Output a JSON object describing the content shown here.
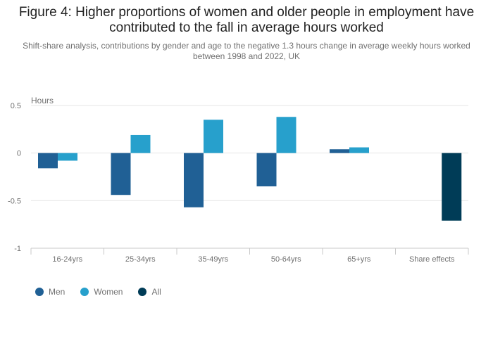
{
  "title": "Figure 4: Higher proportions of women and older people in employment have contributed to the fall in average hours worked",
  "subtitle": "Shift-share analysis, contributions by gender and age to the negative 1.3 hours change in average weekly hours worked between 1998 and 2022, UK",
  "colors": {
    "Men": "#206095",
    "Women": "#27a0cc",
    "All": "#003c57"
  },
  "chart_data": {
    "type": "bar",
    "ylabel": "Hours",
    "ylim": [
      -1,
      0.5
    ],
    "yticks": [
      0.5,
      0,
      -0.5,
      -1
    ],
    "ytick_labels": [
      "0.5",
      "0",
      "-0.5",
      "-1"
    ],
    "categories": [
      "16-24yrs",
      "25-34yrs",
      "35-49yrs",
      "50-64yrs",
      "65+yrs",
      "Share effects"
    ],
    "series": [
      {
        "name": "Men",
        "values": [
          -0.16,
          -0.44,
          -0.57,
          -0.35,
          0.04,
          null
        ]
      },
      {
        "name": "Women",
        "values": [
          -0.08,
          0.19,
          0.35,
          0.38,
          0.06,
          null
        ]
      },
      {
        "name": "All",
        "values": [
          null,
          null,
          null,
          null,
          null,
          -0.71
        ]
      }
    ],
    "grid": true,
    "legend_position": "bottom-left"
  }
}
